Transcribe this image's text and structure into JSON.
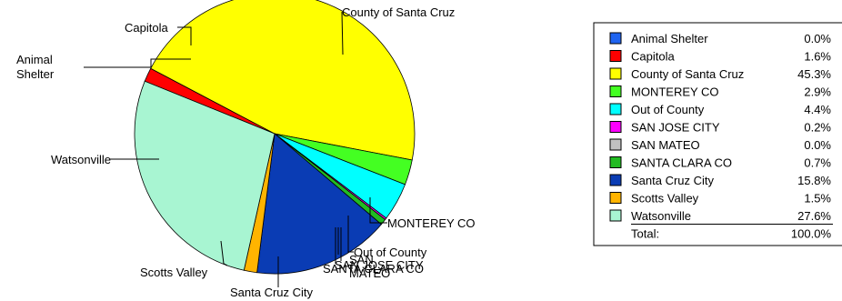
{
  "chart_data": {
    "type": "pie",
    "title": "",
    "series": [
      {
        "name": "Animal Shelter",
        "value": 0.0,
        "pct_label": "0.0%",
        "color": "#1F64F0"
      },
      {
        "name": "Capitola",
        "value": 1.6,
        "pct_label": "1.6%",
        "color": "#FF0000"
      },
      {
        "name": "County of Santa Cruz",
        "value": 45.3,
        "pct_label": "45.3%",
        "color": "#FFFF00"
      },
      {
        "name": "MONTEREY CO",
        "value": 2.9,
        "pct_label": "2.9%",
        "color": "#44FF22"
      },
      {
        "name": "Out of County",
        "value": 4.4,
        "pct_label": "4.4%",
        "color": "#00FFFF"
      },
      {
        "name": "SAN JOSE CITY",
        "value": 0.2,
        "pct_label": "0.2%",
        "color": "#FF00FF"
      },
      {
        "name": "SAN MATEO",
        "value": 0.0,
        "pct_label": "0.0%",
        "color": "#C0C0C0"
      },
      {
        "name": "SANTA CLARA CO",
        "value": 0.7,
        "pct_label": "0.7%",
        "color": "#22BB22"
      },
      {
        "name": "Santa Cruz City",
        "value": 15.8,
        "pct_label": "15.8%",
        "color": "#0A3CB4"
      },
      {
        "name": "Scotts Valley",
        "value": 1.5,
        "pct_label": "1.5%",
        "color": "#FFB400"
      },
      {
        "name": "Watsonville",
        "value": 27.6,
        "pct_label": "27.6%",
        "color": "#A8F5D2"
      }
    ],
    "callouts": [
      {
        "lines": [
          "Animal",
          "Shelter"
        ]
      },
      {
        "lines": [
          "Capitola"
        ]
      },
      {
        "lines": [
          "County of Santa Cruz"
        ]
      },
      {
        "lines": [
          "MONTEREY CO"
        ]
      },
      {
        "lines": [
          "Out of County"
        ]
      },
      {
        "lines": [
          "SAN JOSE CITY"
        ]
      },
      {
        "lines": [
          "SAN",
          "MATEO"
        ]
      },
      {
        "lines": [
          "SANTA CLARA CO"
        ]
      },
      {
        "lines": [
          "Santa Cruz City"
        ]
      },
      {
        "lines": [
          "Scotts Valley"
        ]
      },
      {
        "lines": [
          "Watsonville"
        ]
      }
    ],
    "legend": {
      "placement": "right",
      "total_label": "Total:",
      "total_value": "100.0%"
    }
  }
}
